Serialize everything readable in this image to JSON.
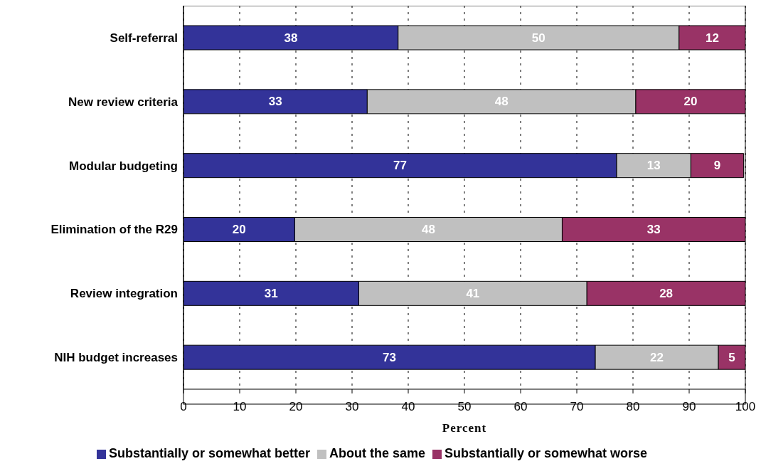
{
  "chart_data": {
    "type": "bar",
    "orientation": "horizontal",
    "stacked": true,
    "xlabel": "Percent",
    "categories": [
      "Self-referral",
      "New review criteria",
      "Modular budgeting",
      "Elimination of the R29",
      "Review integration",
      "NIH budget increases"
    ],
    "series": [
      {
        "name": "Substantially or somewhat better",
        "color": "#333399",
        "values": [
          38.2,
          32.7,
          77.1,
          19.8,
          31.2,
          73.3
        ],
        "value_labels": [
          "38",
          "33",
          "77",
          "20",
          "31",
          "73"
        ]
      },
      {
        "name": "About the same",
        "color": "#c0c0c0",
        "values": [
          50,
          47.8,
          13.2,
          47.6,
          40.6,
          21.9
        ],
        "value_labels": [
          "50",
          "48",
          "13",
          "48",
          "41",
          "22"
        ]
      },
      {
        "name": "Substantially or somewhat worse",
        "color": "#993366",
        "values": [
          11.8,
          19.5,
          9.4,
          32.6,
          28.2,
          4.8
        ],
        "value_labels": [
          "12",
          "20",
          "9",
          "33",
          "28",
          "5"
        ]
      }
    ],
    "xlim": [
      0,
      100
    ],
    "xticks": [
      0,
      10,
      20,
      30,
      40,
      50,
      60,
      70,
      80,
      90,
      100
    ],
    "grid": "x",
    "legend": "bottom"
  }
}
